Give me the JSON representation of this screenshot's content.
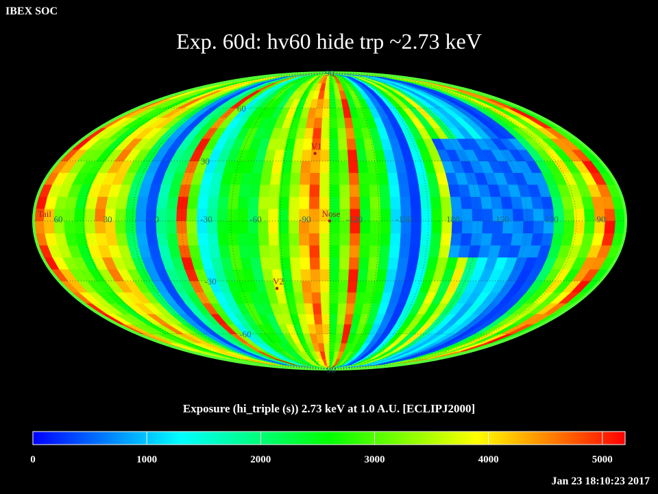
{
  "header": {
    "corner_label": "IBEX SOC",
    "title": "Exp.   60d: hv60 hide trp ~2.73 keV"
  },
  "footer": {
    "colorbar_title": "Exposure (hi_triple (s))  2.73 keV at 1.0 A.U. [ECLIPJ2000]",
    "timestamp": "Jan 23 18:10:23 2017"
  },
  "chart_data": {
    "type": "heatmap",
    "projection": "mollweide",
    "title": "Exp.   60d: hv60 hide trp ~2.73 keV",
    "colorbar": {
      "label": "Exposure (hi_triple (s))  2.73 keV at 1.0 A.U. [ECLIPJ2000]",
      "range": [
        0,
        5200
      ],
      "ticks": [
        0,
        1000,
        2000,
        3000,
        4000,
        5000
      ],
      "colors": [
        "#0000ff",
        "#00ffff",
        "#00ff00",
        "#ffff00",
        "#ff0000"
      ]
    },
    "longitude_labels": [
      "60",
      "30",
      "0",
      "-30",
      "-60",
      "-90",
      "-120",
      "-150",
      "180",
      "150",
      "120",
      "90"
    ],
    "latitude_labels": [
      "90",
      "60",
      "30",
      "-30",
      "-60",
      "-90"
    ],
    "markers": [
      {
        "label": "V1",
        "lon": -95,
        "lat": 34
      },
      {
        "label": "Nose",
        "lon": -105,
        "lat": 0
      },
      {
        "label": "V2",
        "lon": -69,
        "lat": -34
      },
      {
        "label": "Tail",
        "lon": 75,
        "lat": 0
      }
    ],
    "band_exposure": [
      4800,
      4000,
      3400,
      3000,
      2600,
      3700,
      4300,
      3900,
      3300,
      2200,
      800,
      400,
      1800,
      2200,
      4800,
      3100,
      1300,
      1700,
      2400,
      2800,
      2500,
      2300,
      3300,
      3700,
      2600,
      3500,
      4200,
      4600,
      3900,
      2600,
      3200,
      4800,
      2600,
      3000,
      2500,
      1200,
      600,
      300,
      1400,
      2500,
      3600,
      2400,
      3800,
      2000,
      1200,
      900,
      1300,
      1000,
      600,
      300,
      400,
      2200,
      3000,
      3800,
      2900,
      4200,
      4800,
      2700
    ],
    "deficit_region": {
      "lon_range": [
        120,
        180
      ],
      "lat_range": [
        -20,
        45
      ],
      "exposure": 600
    }
  }
}
